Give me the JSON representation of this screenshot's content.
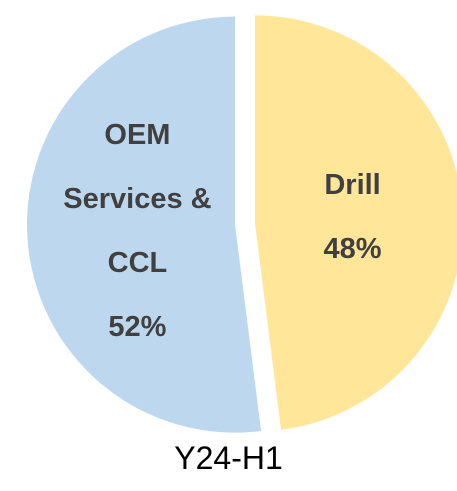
{
  "chart_data": {
    "type": "pie",
    "title": "Y24-H1",
    "categories": [
      "Drill",
      "OEM Services & CCL"
    ],
    "values": [
      48,
      52
    ],
    "value_labels": [
      "48%",
      "52%"
    ],
    "colors": [
      "#FFE699",
      "#BDD7EE"
    ]
  }
}
